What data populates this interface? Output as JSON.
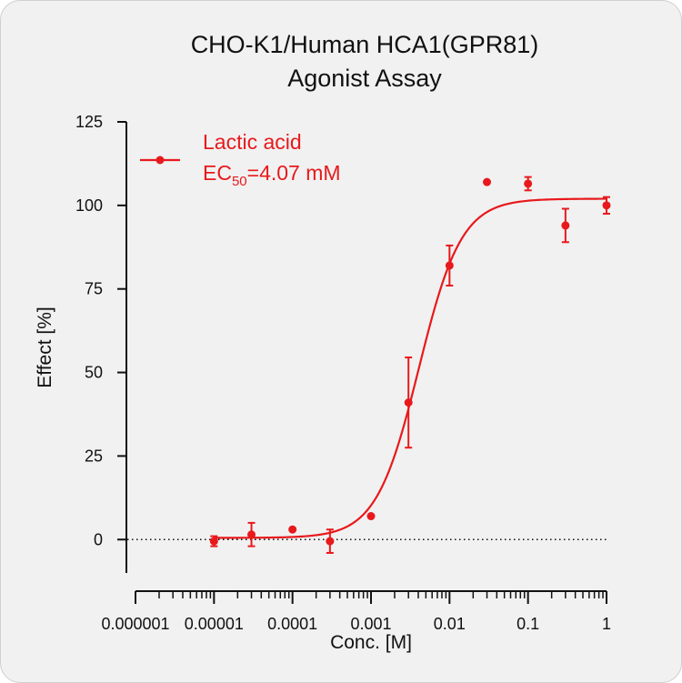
{
  "chart_data": {
    "type": "scatter",
    "title_line1": "CHO-K1/Human HCA1(GPR81)",
    "title_line2": "Agonist Assay",
    "xlabel": "Conc. [M]",
    "ylabel": "Effect  [%]",
    "x_scale": "log",
    "xlim": [
      1e-06,
      1
    ],
    "ylim": [
      -10,
      125
    ],
    "x_ticks": [
      {
        "value": 1e-06,
        "label": "0.000001"
      },
      {
        "value": 1e-05,
        "label": "0.00001"
      },
      {
        "value": 0.0001,
        "label": "0.0001"
      },
      {
        "value": 0.001,
        "label": "0.001"
      },
      {
        "value": 0.01,
        "label": "0.01"
      },
      {
        "value": 0.1,
        "label": "0.1"
      },
      {
        "value": 1,
        "label": "1"
      }
    ],
    "y_ticks": [
      {
        "value": 0,
        "label": "0"
      },
      {
        "value": 25,
        "label": "25"
      },
      {
        "value": 50,
        "label": "50"
      },
      {
        "value": 75,
        "label": "75"
      },
      {
        "value": 100,
        "label": "100"
      },
      {
        "value": 125,
        "label": "125"
      }
    ],
    "baseline": 0,
    "series": [
      {
        "name": "Lactic acid",
        "color": "#e8191c",
        "legend_line1": "Lactic acid",
        "legend_ec_prefix": "EC",
        "legend_ec_sub": "50",
        "legend_ec_value": "=4.07 mM",
        "ec50": 0.00407,
        "fit": {
          "bottom": 0.5,
          "top": 102,
          "hill": 1.6
        },
        "points": [
          {
            "x": 1e-05,
            "y": -0.5,
            "err": 1.5
          },
          {
            "x": 3e-05,
            "y": 1.5,
            "err": 3.5
          },
          {
            "x": 0.0001,
            "y": 3.0,
            "err": 0
          },
          {
            "x": 0.0003,
            "y": -0.5,
            "err": 3.5
          },
          {
            "x": 0.001,
            "y": 7.0,
            "err": 0
          },
          {
            "x": 0.003,
            "y": 41.0,
            "err": 13.5
          },
          {
            "x": 0.01,
            "y": 82.0,
            "err": 6.0
          },
          {
            "x": 0.03,
            "y": 107.0,
            "err": 0
          },
          {
            "x": 0.1,
            "y": 106.5,
            "err": 2.0
          },
          {
            "x": 0.3,
            "y": 94.0,
            "err": 5.0
          },
          {
            "x": 1,
            "y": 100.0,
            "err": 2.5
          }
        ]
      }
    ]
  }
}
